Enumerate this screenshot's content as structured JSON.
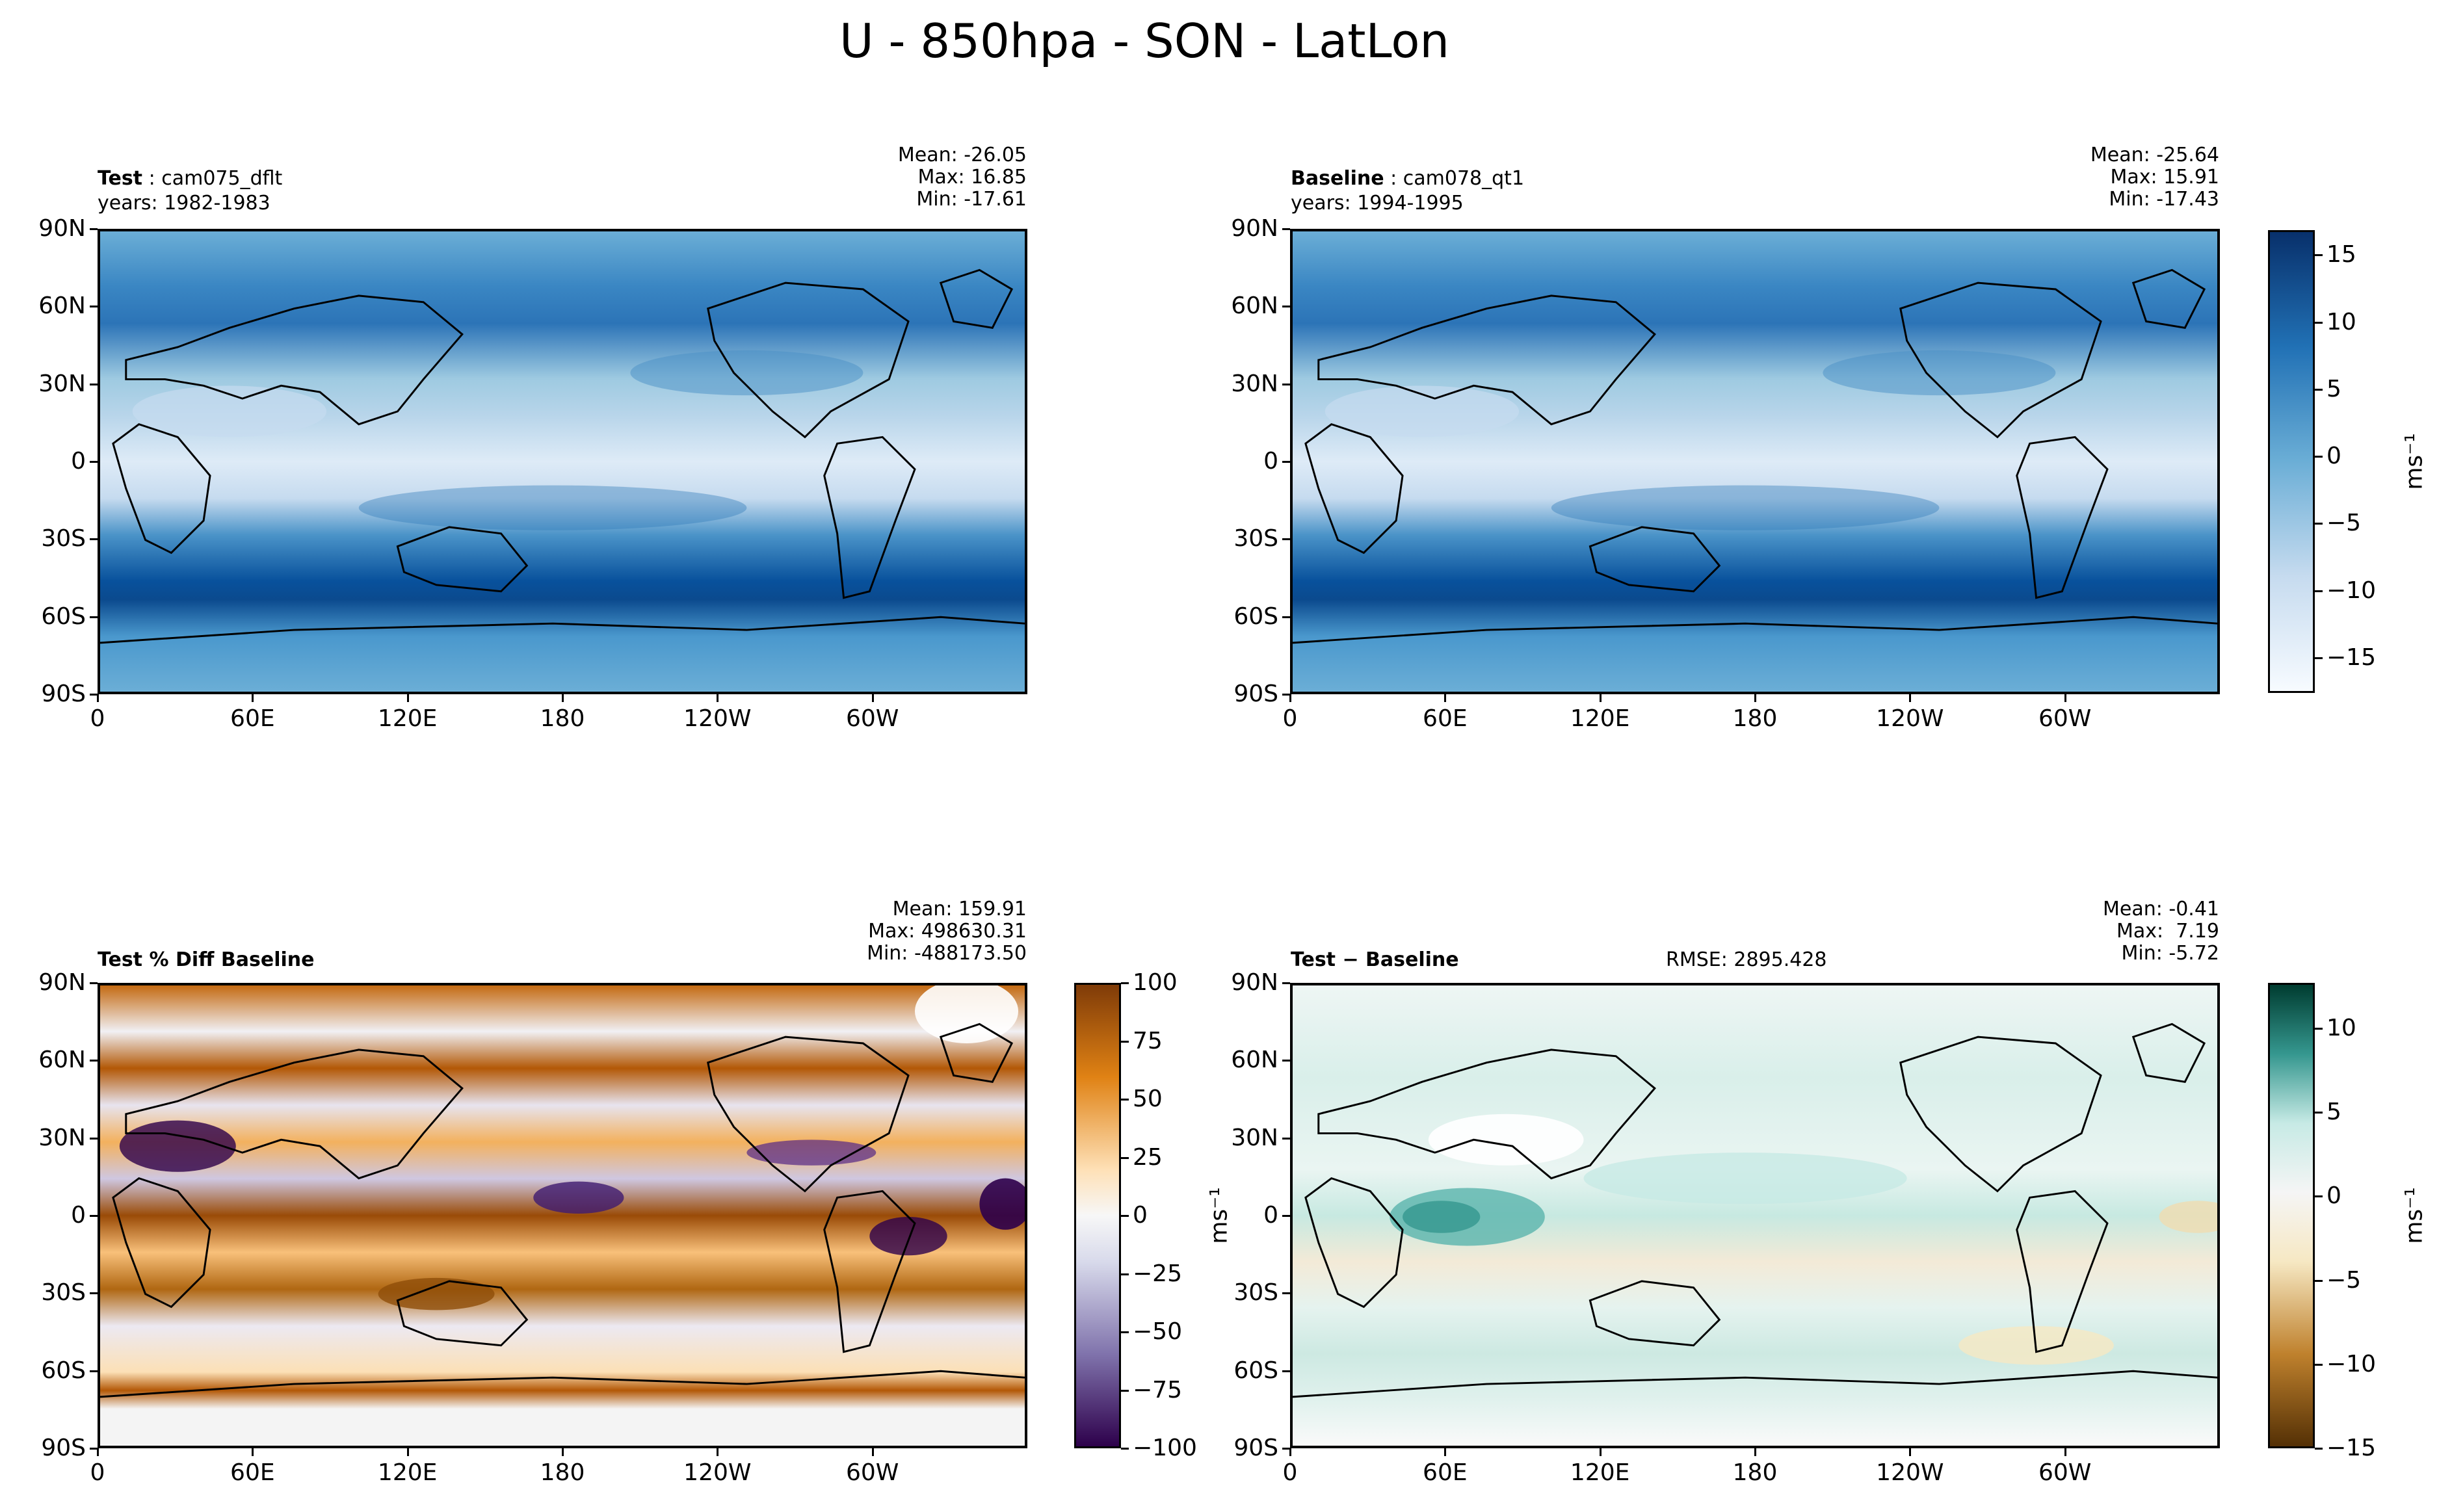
{
  "suptitle": "U - 850hpa - SON - LatLon",
  "panels": {
    "test": {
      "title_bold": "Test",
      "title_rest": " : cam075_dflt",
      "years": "years: 1982-1983",
      "mean": "Mean: -26.05",
      "max": "Max: 16.85",
      "min": "Min: -17.61"
    },
    "baseline": {
      "title_bold": "Baseline",
      "title_rest": " : cam078_qt1",
      "years": "years: 1994-1995",
      "mean": "Mean: -25.64",
      "max": "Max: 15.91",
      "min": "Min: -17.43"
    },
    "pctdiff": {
      "title_bold": "Test % Diff Baseline",
      "mean": "Mean: 159.91",
      "max": "Max: 498630.31",
      "min": "Min: -488173.50"
    },
    "diff": {
      "title_bold": "Test − Baseline",
      "rmse": "RMSE: 2895.428",
      "mean": "Mean: -0.41",
      "max": "Max:  7.19",
      "min": "Min: -5.72"
    }
  },
  "axes": {
    "lat_labels": [
      "90N",
      "60N",
      "30N",
      "0",
      "30S",
      "60S",
      "90S"
    ],
    "lon_labels": [
      "0",
      "60E",
      "120E",
      "180",
      "120W",
      "60W"
    ]
  },
  "colorbars": {
    "field": {
      "unit": "ms⁻¹",
      "ticks": [
        "15",
        "10",
        "5",
        "0",
        "−5",
        "−10",
        "−15"
      ]
    },
    "pctdiff": {
      "unit": "ms⁻¹",
      "ticks": [
        "100",
        "75",
        "50",
        "25",
        "0",
        "−25",
        "−50",
        "−75",
        "−100"
      ]
    },
    "diff": {
      "unit": "ms⁻¹",
      "ticks": [
        "10",
        "5",
        "0",
        "−5",
        "−10",
        "−15"
      ]
    }
  },
  "chart_data": [
    {
      "type": "heatmap",
      "title": "Test : cam075_dflt",
      "subtitle": "years: 1982-1983",
      "variable": "U 850hpa",
      "colormap": "Blues",
      "clim": [
        -17.61,
        16.85
      ],
      "stats": {
        "mean": -26.05,
        "max": 16.85,
        "min": -17.61
      },
      "colorbar_ticks": [
        -15,
        -10,
        -5,
        0,
        5,
        10,
        15
      ],
      "colorbar_label": "ms⁻¹"
    },
    {
      "type": "heatmap",
      "title": "Baseline : cam078_qt1",
      "subtitle": "years: 1994-1995",
      "variable": "U 850hpa",
      "colormap": "Blues",
      "clim": [
        -17.43,
        15.91
      ],
      "stats": {
        "mean": -25.64,
        "max": 15.91,
        "min": -17.43
      },
      "colorbar_ticks": [
        -15,
        -10,
        -5,
        0,
        5,
        10,
        15
      ],
      "colorbar_label": "ms⁻¹"
    },
    {
      "type": "heatmap",
      "title": "Test % Diff Baseline",
      "colormap": "PuOr",
      "clim": [
        -100,
        100
      ],
      "stats": {
        "mean": 159.91,
        "max": 498630.31,
        "min": -488173.5
      },
      "colorbar_ticks": [
        -100,
        -75,
        -50,
        -25,
        0,
        25,
        50,
        75,
        100
      ],
      "colorbar_label": "ms⁻¹"
    },
    {
      "type": "heatmap",
      "title": "Test − Baseline",
      "rmse": 2895.428,
      "colormap": "BrBG",
      "clim": [
        -15,
        12.5
      ],
      "stats": {
        "mean": -0.41,
        "max": 7.19,
        "min": -5.72
      },
      "colorbar_ticks": [
        -15,
        -10,
        -5,
        0,
        5,
        10
      ],
      "colorbar_label": "ms⁻¹"
    }
  ],
  "colors": {
    "blues_light": "#f7fbff",
    "blues_mid": "#6baed6",
    "blues_dark": "#08306b",
    "puor_brown": "#7f3b08",
    "puor_orange": "#f1a340",
    "puor_purple": "#2d004b",
    "brbg_brown": "#543005",
    "brbg_teal": "#003c30"
  }
}
